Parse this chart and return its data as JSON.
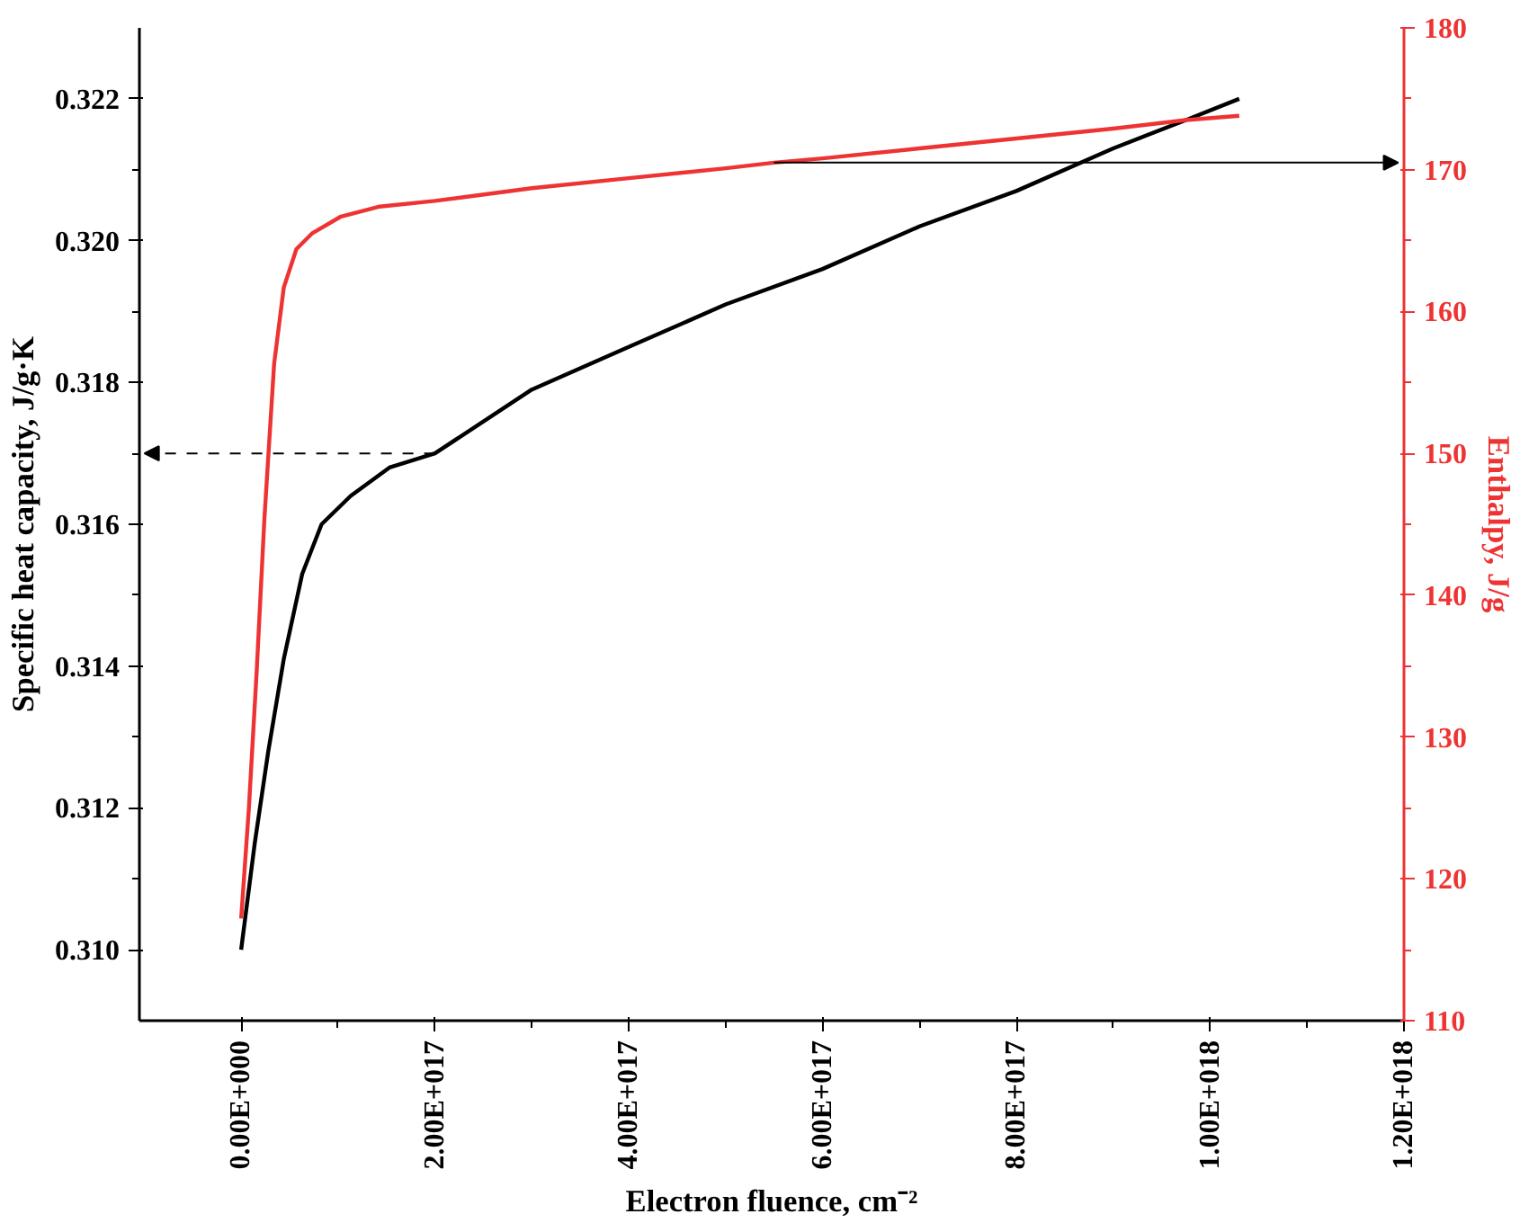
{
  "chart_data": {
    "type": "line",
    "xlabel": "Electron fluence, cm⁻²",
    "ylabel": "Specific heat capacity, J/g·K",
    "y2label": "Enthalpy, J/g",
    "xlim": [
      -1.05e+17,
      1.2e+18
    ],
    "ylim": [
      0.309,
      0.323
    ],
    "y2lim": [
      110,
      180
    ],
    "xticks": [
      {
        "value": 0,
        "label": "0.00E+000"
      },
      {
        "value": 2e+17,
        "label": "2.00E+017"
      },
      {
        "value": 4e+17,
        "label": "4.00E+017"
      },
      {
        "value": 6e+17,
        "label": "6.00E+017"
      },
      {
        "value": 8e+17,
        "label": "8.00E+017"
      },
      {
        "value": 1e+18,
        "label": "1.00E+018"
      },
      {
        "value": 1.2e+18,
        "label": "1.20E+018"
      }
    ],
    "yticks": [
      {
        "value": 0.31,
        "label": "0.310"
      },
      0.312,
      0.314,
      0.316,
      0.318,
      {
        "value": 0.32,
        "label": "0.320"
      },
      0.322
    ],
    "y2ticks": [
      110,
      120,
      130,
      140,
      150,
      160,
      170,
      180
    ],
    "grid": false,
    "marker": "none",
    "line_style": "solid",
    "series": [
      {
        "color": "#000000",
        "x": [
          0,
          1.4e+16,
          2.8e+16,
          4.4e+16,
          6.3e+16,
          8.3e+16,
          1.13e+17,
          1.53e+17,
          2e+17,
          3e+17,
          4e+17,
          5e+17,
          6e+17,
          7e+17,
          8e+17,
          9e+17,
          9.75e+17,
          1.03e+18
        ],
        "values": [
          0.31,
          0.3115,
          0.3128,
          0.3141,
          0.3153,
          0.316,
          0.3164,
          0.3168,
          0.317,
          0.3179,
          0.3185,
          0.3191,
          0.3196,
          0.3202,
          0.3207,
          0.3213,
          0.3217,
          0.322
        ]
      },
      {
        "color": "#ee3333",
        "axis": "y2",
        "x": [
          0,
          8000000000000000.0,
          1.6e+16,
          2.4e+16,
          3.4e+16,
          4.4e+16,
          5.7e+16,
          7.3e+16,
          1.03e+17,
          1.43e+17,
          2e+17,
          3e+17,
          4e+17,
          5e+17,
          5.5e+17,
          6e+17,
          7e+17,
          8e+17,
          9e+17,
          9.75e+17,
          1.03e+18
        ],
        "values": [
          117.2,
          125,
          134.6,
          145.4,
          156.3,
          161.7,
          164.4,
          165.5,
          166.7,
          167.4,
          167.8,
          168.7,
          169.4,
          170.1,
          170.5,
          170.8,
          171.5,
          172.2,
          172.9,
          173.5,
          173.8
        ]
      }
    ]
  }
}
